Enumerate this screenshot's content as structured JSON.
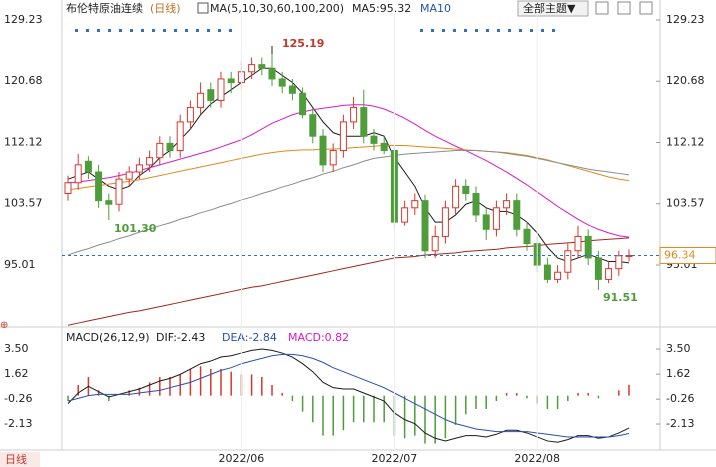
{
  "ui": {
    "theme_button": "全部主题▼",
    "period_tab": "日线"
  },
  "chart_data": [
    {
      "type": "candlestick",
      "title": "布伦特原油连续",
      "subtitle": "(日线)",
      "legend_texts": [
        "MA(5,10,30,60,100,200)",
        "MA5:95.32",
        "MA10"
      ],
      "annotations": [
        "125.19",
        "101.30",
        "91.51"
      ],
      "last_price": {
        "value": 96.34,
        "label": "96.34"
      },
      "up_color": "#d9372b",
      "down_color": "#4f9c3a",
      "ylim": [
        86.63,
        130.35
      ],
      "yticks": [
        95.01,
        103.57,
        112.12,
        120.68,
        129.23
      ],
      "open": [
        105,
        106.5,
        109.5,
        108,
        104,
        103.5,
        107,
        108,
        109,
        110,
        112,
        111,
        115,
        117,
        119.5,
        118,
        121,
        120.5,
        122,
        123,
        122.5,
        121,
        120,
        119,
        116,
        113,
        109,
        111,
        115,
        117,
        113,
        112,
        111,
        101,
        103,
        104,
        97,
        99,
        103,
        106,
        105,
        102,
        100,
        103,
        104,
        100,
        98,
        95,
        93,
        94,
        97,
        99,
        96,
        93,
        94.5,
        96.3
      ],
      "high": [
        107.5,
        110.5,
        110.2,
        109,
        105,
        108,
        108.8,
        110,
        111,
        113,
        113,
        116,
        118,
        120.5,
        120.5,
        122,
        122,
        123.5,
        124,
        124,
        125.19,
        122,
        121,
        119.8,
        117,
        114,
        112,
        116,
        118.5,
        119.5,
        114,
        113,
        111.8,
        104,
        105,
        104.8,
        100.5,
        104,
        107,
        107,
        106,
        103,
        104,
        105,
        105,
        101,
        99,
        96,
        95,
        98,
        100.5,
        100,
        97,
        95.5,
        97,
        97.2
      ],
      "low": [
        104,
        105.5,
        107,
        103,
        101.3,
        102.5,
        106,
        107,
        108,
        109,
        110,
        110,
        114,
        116,
        117,
        117,
        119,
        119.5,
        121,
        121.5,
        120,
        119,
        118,
        115.5,
        112,
        108,
        108,
        110,
        114,
        112,
        111,
        110.5,
        100,
        100.5,
        102,
        96,
        96,
        98,
        102,
        104,
        101,
        98.5,
        99,
        102,
        99,
        97,
        94,
        92.5,
        92.5,
        93,
        96,
        95,
        91.51,
        92.5,
        93.5,
        95.5
      ],
      "close": [
        106.5,
        109,
        108,
        104,
        103.5,
        107,
        108,
        109,
        110,
        112,
        111,
        115,
        117,
        119,
        118,
        121,
        120.5,
        122,
        123,
        122.5,
        121,
        120,
        119,
        116,
        113,
        109,
        111,
        115,
        117,
        113,
        112,
        111,
        101,
        103,
        104,
        97,
        99,
        103,
        106,
        105,
        102,
        100,
        103,
        104,
        100,
        98,
        95,
        93,
        94,
        97,
        99,
        96,
        93,
        94.5,
        96.3,
        96.34
      ],
      "series": [
        {
          "color": "#1a1a1a",
          "values": [
            107,
            107.5,
            108,
            107,
            106,
            105.5,
            106,
            107.5,
            108.5,
            110,
            111,
            112.5,
            114,
            116,
            117.5,
            118.5,
            119.5,
            120.5,
            121.5,
            122.5,
            122.5,
            121.5,
            120.5,
            119,
            117,
            115,
            113.5,
            113,
            113,
            113,
            113.5,
            113,
            110,
            108,
            106,
            103,
            101,
            101,
            102,
            103.5,
            104,
            103,
            102.5,
            102.5,
            102,
            101,
            99.5,
            97.5,
            96,
            95.5,
            96,
            96.5,
            96,
            95.5,
            95.5,
            95.3
          ]
        },
        {
          "color": "#d81bc8",
          "values": [
            106.5,
            106.6,
            106.8,
            107,
            107.2,
            107.5,
            107.8,
            108.2,
            108.6,
            109,
            109.4,
            109.8,
            110.2,
            110.6,
            111,
            111.5,
            112,
            112.5,
            113.2,
            114,
            114.8,
            115.4,
            116,
            116.4,
            116.7,
            116.9,
            117.1,
            117.3,
            117.4,
            117.4,
            117.2,
            116.8,
            116.2,
            115.5,
            114.7,
            113.8,
            113,
            112.3,
            111.6,
            111,
            110.3,
            109.6,
            108.8,
            108,
            107.1,
            106.2,
            105.2,
            104.2,
            103.2,
            102.3,
            101.4,
            100.6,
            100,
            99.5,
            99.1,
            98.9
          ]
        },
        {
          "color": "#e08a1e",
          "values": [
            105.5,
            105.7,
            105.9,
            106.1,
            106.3,
            106.5,
            106.7,
            106.9,
            107.2,
            107.5,
            107.8,
            108.1,
            108.4,
            108.7,
            109,
            109.3,
            109.6,
            109.9,
            110.2,
            110.5,
            110.7,
            110.9,
            111,
            111.1,
            111.1,
            111.2,
            111.2,
            111.3,
            111.4,
            111.5,
            111.6,
            111.7,
            111.7,
            111.7,
            111.6,
            111.5,
            111.4,
            111.3,
            111.2,
            111.1,
            111,
            110.9,
            110.8,
            110.7,
            110.5,
            110.3,
            110,
            109.7,
            109.3,
            108.9,
            108.5,
            108.1,
            107.7,
            107.3,
            107,
            106.8
          ]
        },
        {
          "color": "#8c8c8c",
          "values": [
            96.4,
            96.9,
            97.3,
            97.8,
            98.2,
            98.7,
            99.1,
            99.6,
            100,
            100.5,
            100.9,
            101.4,
            101.8,
            102.3,
            102.7,
            103.2,
            103.6,
            104.1,
            104.5,
            105,
            105.4,
            105.9,
            106.3,
            106.8,
            107.2,
            107.7,
            108.1,
            108.6,
            109,
            109.5,
            109.9,
            110.1,
            110.3,
            110.5,
            110.6,
            110.7,
            110.8,
            110.9,
            111,
            111,
            111,
            110.9,
            110.8,
            110.6,
            110.4,
            110.2,
            109.9,
            109.6,
            109.3,
            109,
            108.7,
            108.4,
            108.2,
            108,
            107.8,
            107.6
          ]
        },
        {
          "color": "#a0281c",
          "values": [
            86.6,
            86.9,
            87.2,
            87.5,
            87.8,
            88.1,
            88.4,
            88.6,
            88.9,
            89.2,
            89.5,
            89.8,
            90.1,
            90.4,
            90.7,
            91,
            91.3,
            91.6,
            91.9,
            92.1,
            92.4,
            92.7,
            93,
            93.3,
            93.6,
            93.9,
            94.2,
            94.5,
            94.8,
            95.1,
            95.4,
            95.7,
            96,
            96.1,
            96.2,
            96.4,
            96.5,
            96.6,
            96.7,
            96.9,
            97,
            97.1,
            97.2,
            97.4,
            97.5,
            97.6,
            97.7,
            97.9,
            98,
            98.1,
            98.2,
            98.4,
            98.5,
            98.6,
            98.7,
            98.8
          ]
        }
      ]
    },
    {
      "type": "macd",
      "title": "MACD(26,12,9)",
      "legend": [
        {
          "text": "DIF:-2.43",
          "color": "#1a1a1a"
        },
        {
          "text": "DEA:-2.84",
          "color": "#2850b0"
        },
        {
          "text": "MACD:0.82",
          "color": "#d81bc8"
        }
      ],
      "categories": [
        null,
        null,
        null,
        null,
        null,
        null,
        null,
        null,
        null,
        null,
        null,
        null,
        null,
        null,
        null,
        null,
        null,
        "2022/06",
        null,
        null,
        null,
        null,
        null,
        null,
        null,
        null,
        null,
        null,
        null,
        null,
        null,
        null,
        "2022/07",
        null,
        null,
        null,
        null,
        null,
        null,
        null,
        null,
        null,
        null,
        null,
        null,
        null,
        "2022/08",
        null,
        null,
        null,
        null,
        null,
        null,
        null,
        null,
        null
      ],
      "ylim": [
        -4.08,
        4.18
      ],
      "yticks": [
        -2.13,
        -0.26,
        1.62,
        {
          "value": 3.5,
          "label": "3.50"
        }
      ],
      "series": [
        {
          "color": "#1a1a1a",
          "values": [
            -0.6,
            0.2,
            0.7,
            0.3,
            -0.1,
            0.1,
            0.3,
            0.5,
            0.8,
            1.1,
            1.3,
            1.6,
            2,
            2.4,
            2.6,
            2.9,
            3,
            3.2,
            3.4,
            3.5,
            3.4,
            3.2,
            2.9,
            2.4,
            1.8,
            1,
            0.6,
            0.5,
            0.5,
            0.2,
            -0.1,
            -0.4,
            -1.3,
            -1.8,
            -2.1,
            -2.8,
            -3.2,
            -3.4,
            -3.2,
            -3,
            -3,
            -3.1,
            -2.9,
            -2.6,
            -2.6,
            -2.8,
            -3.1,
            -3.4,
            -3.5,
            -3.3,
            -3,
            -3,
            -3.2,
            -3.1,
            -2.8,
            -2.43
          ]
        },
        {
          "color": "#2850b0",
          "values": [
            -0.4,
            -0.2,
            0,
            0.1,
            0.1,
            0.1,
            0.1,
            0.2,
            0.3,
            0.4,
            0.6,
            0.8,
            1,
            1.3,
            1.6,
            1.9,
            2.1,
            2.4,
            2.6,
            2.8,
            3,
            3.1,
            3.1,
            3,
            2.8,
            2.5,
            2.1,
            1.8,
            1.5,
            1.2,
            0.9,
            0.6,
            0.2,
            -0.2,
            -0.6,
            -1,
            -1.4,
            -1.8,
            -2.1,
            -2.3,
            -2.5,
            -2.6,
            -2.7,
            -2.7,
            -2.7,
            -2.7,
            -2.8,
            -2.9,
            -3,
            -3.1,
            -3.1,
            -3.1,
            -3.1,
            -3.1,
            -3,
            -2.84
          ]
        }
      ],
      "histogram": {
        "up_color": "#d9372b",
        "down_color": "#4f9c3a",
        "values": [
          -0.4,
          0.8,
          1.4,
          0.4,
          -0.4,
          0,
          0.4,
          0.6,
          1,
          1.4,
          1.4,
          1.6,
          2,
          2.2,
          2,
          2,
          1.8,
          1.6,
          1.6,
          1.4,
          0.8,
          0.2,
          -0.4,
          -1.2,
          -2,
          -3,
          -3,
          -2.6,
          -2,
          -2,
          -2,
          -2,
          -3,
          -3.2,
          -3,
          -3.6,
          -3.6,
          -3.2,
          -2.2,
          -1.4,
          -1,
          -1,
          -0.4,
          0.2,
          0.2,
          -0.2,
          -0.6,
          -1,
          -1,
          -0.4,
          0.2,
          0.2,
          -0.2,
          0,
          0.4,
          0.82
        ]
      }
    }
  ]
}
